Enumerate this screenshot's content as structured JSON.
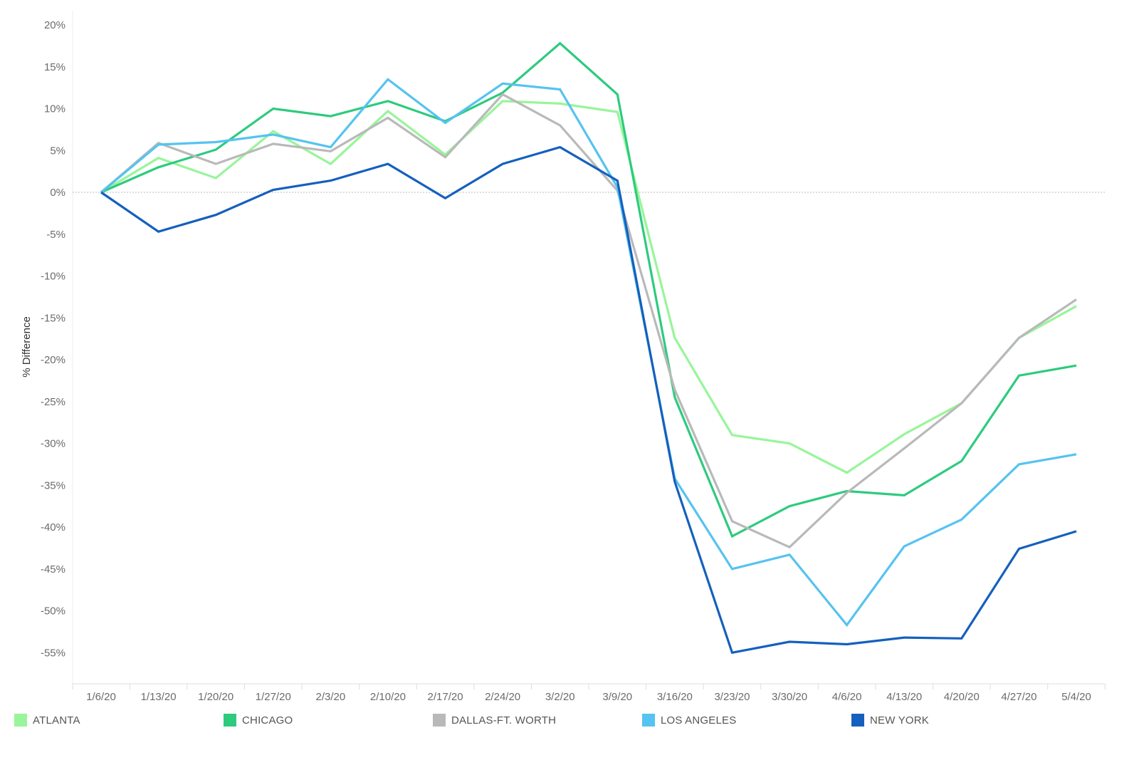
{
  "chart_data": {
    "type": "line",
    "title": "",
    "xlabel": "",
    "ylabel": "% Difference",
    "ylim": [
      -58,
      22
    ],
    "yticks": [
      20,
      15,
      10,
      5,
      0,
      -5,
      -10,
      -15,
      -20,
      -25,
      -30,
      -35,
      -40,
      -45,
      -50,
      -55
    ],
    "ytick_suffix": "%",
    "grid": false,
    "zero_line": "dotted",
    "legend_position": "bottom",
    "categories": [
      "1/6/20",
      "1/13/20",
      "1/20/20",
      "1/27/20",
      "2/3/20",
      "2/10/20",
      "2/17/20",
      "2/24/20",
      "3/2/20",
      "3/9/20",
      "3/16/20",
      "3/23/20",
      "3/30/20",
      "4/6/20",
      "4/13/20",
      "4/20/20",
      "4/27/20",
      "5/4/20"
    ],
    "series": [
      {
        "name": "ATLANTA",
        "color": "#98f59a",
        "values": [
          0,
          4.1,
          1.7,
          7.3,
          3.4,
          9.7,
          4.5,
          10.9,
          10.6,
          9.6,
          -17.4,
          -29.0,
          -30.0,
          -33.5,
          -28.9,
          -25.2,
          -17.4,
          -13.6
        ]
      },
      {
        "name": "CHICAGO",
        "color": "#2dcb7e",
        "values": [
          0,
          3.0,
          5.1,
          10.0,
          9.1,
          10.9,
          8.5,
          11.9,
          17.8,
          11.7,
          -24.5,
          -41.1,
          -37.5,
          -35.7,
          -36.2,
          -32.1,
          -21.9,
          -20.7
        ]
      },
      {
        "name": "DALLAS-FT. WORTH",
        "color": "#b9b9b9",
        "values": [
          0,
          5.9,
          3.4,
          5.8,
          4.9,
          8.9,
          4.2,
          11.7,
          8.0,
          0.2,
          -23.6,
          -39.3,
          -42.4,
          -35.9,
          -30.6,
          -25.2,
          -17.4,
          -12.8
        ]
      },
      {
        "name": "LOS ANGELES",
        "color": "#56c3f0",
        "values": [
          0,
          5.7,
          6.0,
          6.9,
          5.4,
          13.5,
          8.3,
          13.0,
          12.3,
          0.6,
          -34.2,
          -45.0,
          -43.3,
          -51.7,
          -42.3,
          -39.1,
          -32.5,
          -31.3
        ]
      },
      {
        "name": "NEW YORK",
        "color": "#1560bd",
        "values": [
          0,
          -4.7,
          -2.7,
          0.3,
          1.4,
          3.4,
          -0.7,
          3.4,
          5.4,
          1.4,
          -34.6,
          -55.0,
          -53.7,
          -54.0,
          -53.2,
          -53.3,
          -42.6,
          -40.5
        ]
      }
    ]
  }
}
